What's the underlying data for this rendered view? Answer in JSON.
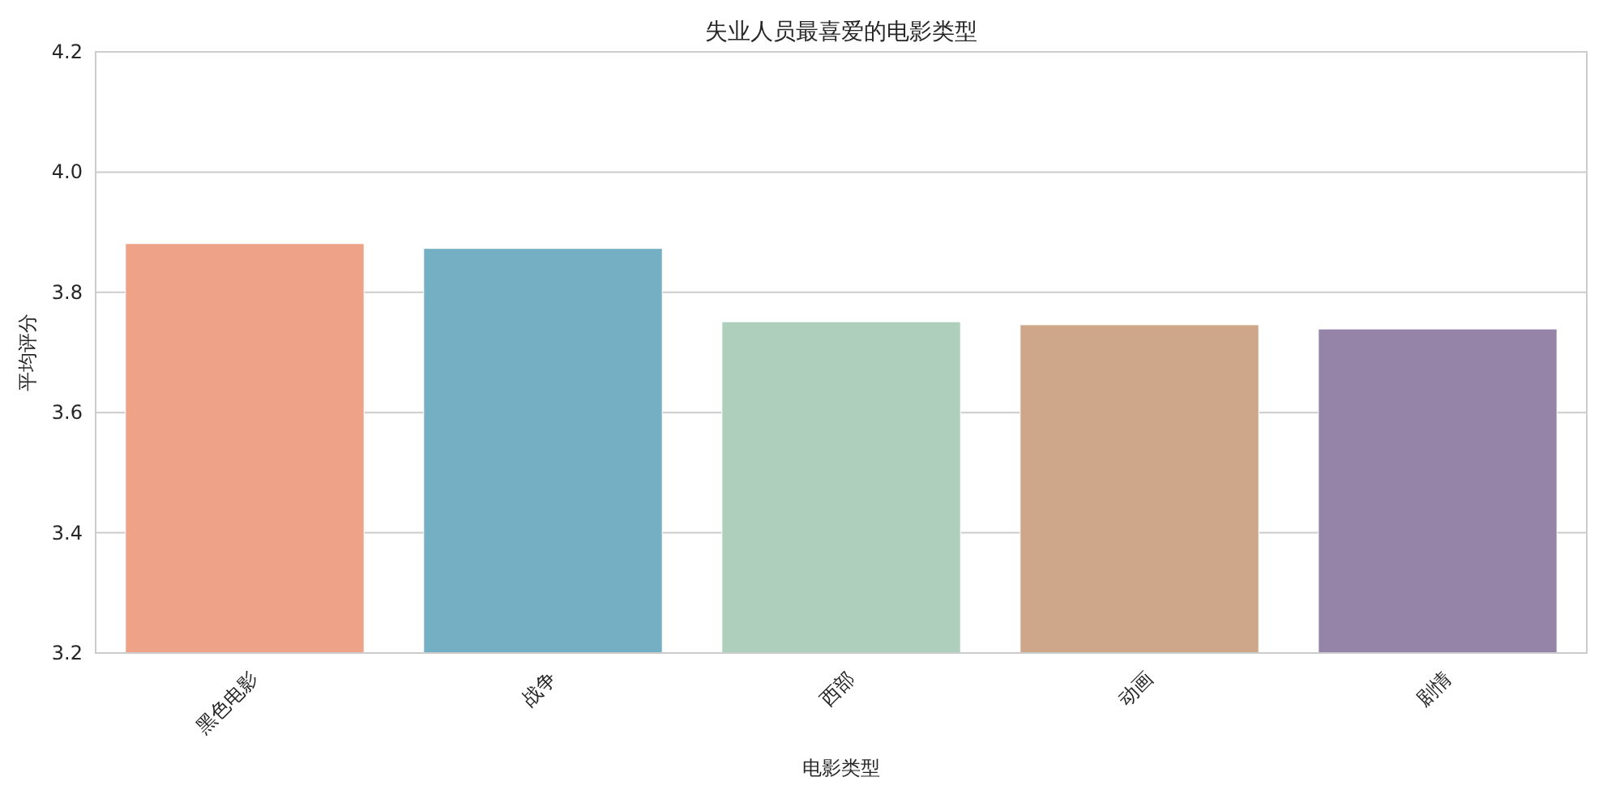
{
  "chart_data": {
    "type": "bar",
    "title": "失业人员最喜爱的电影类型",
    "xlabel": "电影类型",
    "ylabel": "平均评分",
    "categories": [
      "黑色电影",
      "战争",
      "西部",
      "动画",
      "剧情"
    ],
    "values": [
      3.881,
      3.873,
      3.751,
      3.746,
      3.739
    ],
    "colors": [
      "#eea388",
      "#75afc3",
      "#aecfbb",
      "#cea689",
      "#9584a8"
    ],
    "ylim": [
      3.2,
      4.2
    ],
    "yticks": [
      {
        "value": 3.2,
        "label": "3.2"
      },
      {
        "value": 3.4,
        "label": "3.4"
      },
      {
        "value": 3.6,
        "label": "3.6"
      },
      {
        "value": 3.8,
        "label": "3.8"
      },
      {
        "value": 4.0,
        "label": "4.0"
      },
      {
        "value": 4.2,
        "label": "4.2"
      }
    ],
    "grid": "y"
  }
}
